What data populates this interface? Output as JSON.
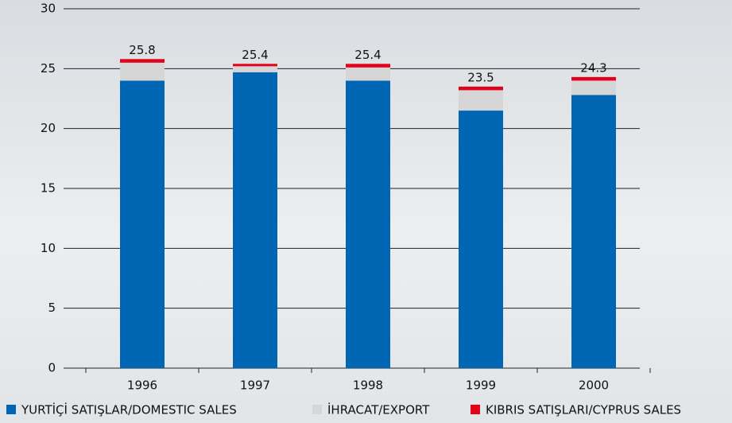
{
  "chart_data": {
    "type": "stacked_bar",
    "categories": [
      "1996",
      "1997",
      "1998",
      "1999",
      "2000"
    ],
    "series": [
      {
        "name": "YURTİÇİ SATIŞLAR/DOMESTIC SALES",
        "color": "#0066b3",
        "values": [
          24.0,
          24.7,
          24.0,
          21.5,
          22.8
        ]
      },
      {
        "name": "İHRACAT/EXPORT",
        "color": "#d6d6d6",
        "values": [
          1.5,
          0.5,
          1.1,
          1.7,
          1.2
        ]
      },
      {
        "name": "KIBRIS SATIŞLARI/CYPRUS SALES",
        "color": "#e2001a",
        "values": [
          0.3,
          0.2,
          0.3,
          0.3,
          0.3
        ]
      }
    ],
    "totals": [
      25.8,
      25.4,
      25.4,
      23.5,
      24.3
    ],
    "ylim": [
      0,
      30
    ],
    "yticks": [
      0,
      5,
      10,
      15,
      20,
      25,
      30
    ],
    "grid": true
  }
}
